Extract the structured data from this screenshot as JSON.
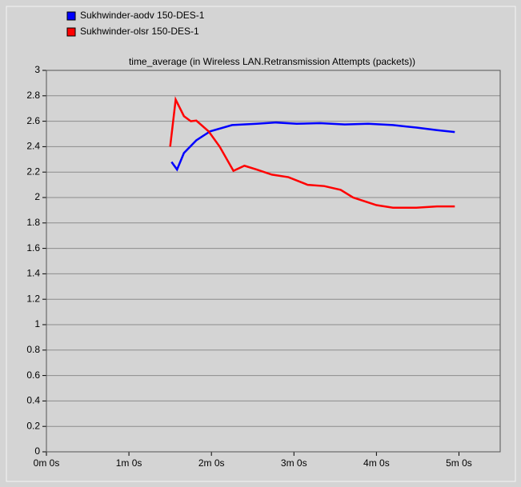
{
  "chart_data": {
    "type": "line",
    "title": "time_average (in Wireless LAN.Retransmission Attempts (packets))",
    "series": [
      {
        "name": "Sukhwinder-aodv 150-DES-1",
        "color": "#0000ff",
        "x": [
          91,
          95,
          100,
          109,
          119,
          135,
          153,
          167,
          182,
          199,
          217,
          234,
          252,
          269,
          284,
          297
        ],
        "values": [
          2.28,
          2.22,
          2.35,
          2.45,
          2.52,
          2.57,
          2.58,
          2.59,
          2.58,
          2.585,
          2.575,
          2.58,
          2.57,
          2.55,
          2.53,
          2.515
        ]
      },
      {
        "name": "Sukhwinder-olsr 150-DES-1",
        "color": "#ff0000",
        "x": [
          90,
          94,
          100,
          105,
          109,
          118,
          126,
          136,
          144,
          153,
          164,
          176,
          190,
          202,
          214,
          223,
          240,
          252,
          269,
          284,
          297
        ],
        "values": [
          2.4,
          2.77,
          2.64,
          2.6,
          2.605,
          2.52,
          2.4,
          2.21,
          2.25,
          2.22,
          2.18,
          2.16,
          2.1,
          2.09,
          2.06,
          2.0,
          1.94,
          1.92,
          1.92,
          1.93,
          1.93
        ]
      }
    ],
    "xlim": [
      0,
      330
    ],
    "xticks": [
      {
        "value": 0,
        "label": "0m 0s"
      },
      {
        "value": 60,
        "label": "1m 0s"
      },
      {
        "value": 120,
        "label": "2m 0s"
      },
      {
        "value": 180,
        "label": "3m 0s"
      },
      {
        "value": 240,
        "label": "4m 0s"
      },
      {
        "value": 300,
        "label": "5m 0s"
      }
    ],
    "ylim": [
      0,
      3
    ],
    "yticks": [
      0,
      0.2,
      0.4,
      0.6,
      0.8,
      1,
      1.2,
      1.4,
      1.6,
      1.8,
      2,
      2.2,
      2.4,
      2.6,
      2.8,
      3
    ],
    "grid": true,
    "legend": "top-left"
  }
}
